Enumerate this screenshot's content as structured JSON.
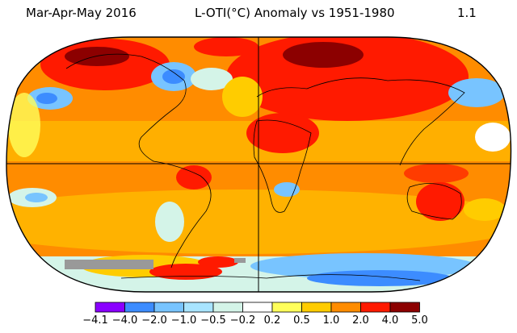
{
  "header": {
    "period": "Mar-Apr-May 2016",
    "title": "L-OTI(°C) Anomaly vs 1951-1980",
    "global_mean": "1.1"
  },
  "legend": {
    "tick_labels": [
      "−4.1",
      "−4.0",
      "−2.0",
      "−1.0",
      "−0.5",
      "−0.2",
      "0.2",
      "0.5",
      "1.0",
      "2.0",
      "4.0",
      "5.0"
    ],
    "colors": [
      "#8a00ff",
      "#3c8cff",
      "#78c4ff",
      "#a8e4ff",
      "#d4f4e8",
      "#ffffff",
      "#ffff5a",
      "#ffcc00",
      "#ff8c00",
      "#ff1a00",
      "#8c0000"
    ],
    "missing_color": "#999999"
  },
  "map": {
    "projection": "Robinson",
    "baseline": "1951-1980",
    "units": "°C"
  }
}
